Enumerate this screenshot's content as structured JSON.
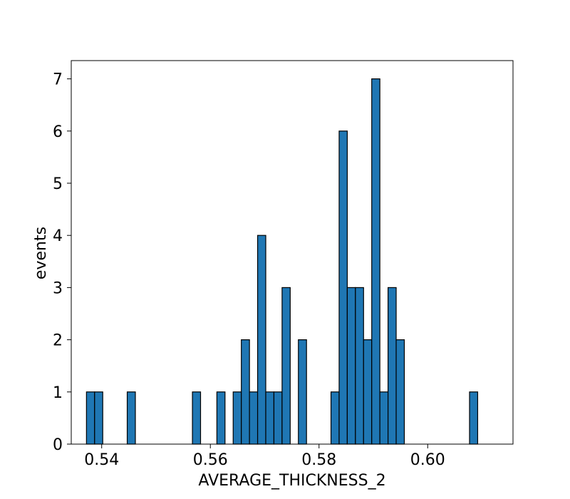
{
  "chart_data": {
    "type": "bar",
    "histogram": true,
    "title": "",
    "xlabel": "AVERAGE_THICKNESS_2",
    "ylabel": "events",
    "xlim": [
      0.5344,
      0.6157
    ],
    "ylim": [
      0,
      7.35
    ],
    "grid": false,
    "x_ticks": [
      0.54,
      0.56,
      0.58,
      0.6
    ],
    "x_tick_labels": [
      "0.54",
      "0.56",
      "0.58",
      "0.60"
    ],
    "y_ticks": [
      0,
      1,
      2,
      3,
      4,
      5,
      6,
      7
    ],
    "y_tick_labels": [
      "0",
      "1",
      "2",
      "3",
      "4",
      "5",
      "6",
      "7"
    ],
    "bin_start": 0.5372,
    "bin_width": 0.0015,
    "counts": [
      1,
      1,
      0,
      0,
      0,
      1,
      0,
      0,
      0,
      0,
      0,
      0,
      0,
      1,
      0,
      0,
      1,
      0,
      1,
      2,
      1,
      4,
      1,
      1,
      3,
      0,
      2,
      0,
      0,
      0,
      1,
      6,
      3,
      3,
      2,
      7,
      1,
      3,
      2,
      0,
      0,
      0,
      0,
      0,
      0,
      0,
      0,
      1
    ],
    "colors": {
      "bar_fill": "#1f77b4",
      "bar_edge": "#000000",
      "axis": "#000000"
    }
  }
}
